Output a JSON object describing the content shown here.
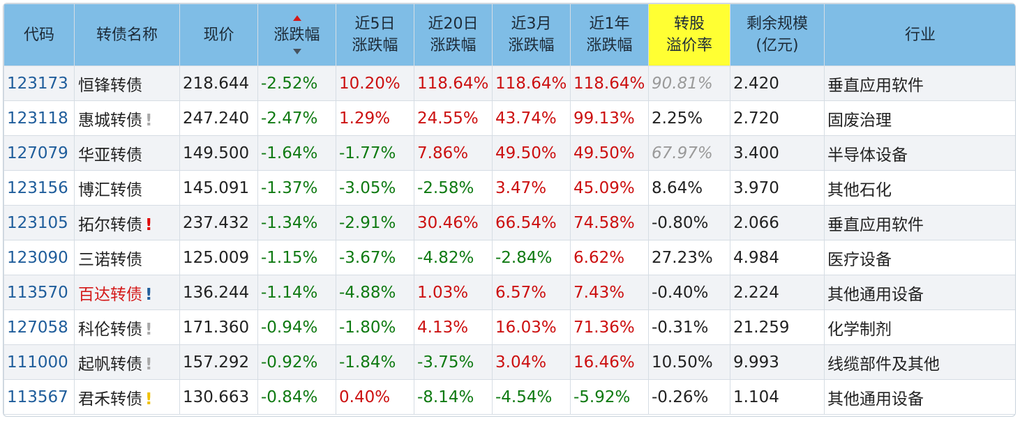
{
  "colors": {
    "header_bg": "#7fbde6",
    "header_highlight": "#ffff33",
    "row_alt_bg": "#f1f3f6",
    "code_color": "#1f5d9b",
    "up_color": "#cc1010",
    "down_color": "#0f7a12",
    "gray_color": "#9a9a9a"
  },
  "headers": {
    "code": "代码",
    "name": "转债名称",
    "price": "现价",
    "change": "涨跌幅",
    "d5_line1": "近5日",
    "d5_line2": "涨跌幅",
    "d20_line1": "近20日",
    "d20_line2": "涨跌幅",
    "m3_line1": "近3月",
    "m3_line2": "涨跌幅",
    "y1_line1": "近1年",
    "y1_line2": "涨跌幅",
    "premium_line1": "转股",
    "premium_line2": "溢价率",
    "scale_line1": "剩余规模",
    "scale_line2": "(亿元)",
    "industry": "行业"
  },
  "sort": {
    "column": "change",
    "icons": [
      "sort-up-icon",
      "sort-down-icon"
    ]
  },
  "rows": [
    {
      "code": "123173",
      "name": "恒锋转债",
      "name_color": "normal",
      "mark": "",
      "mark_color": "none",
      "price": "218.644",
      "change": "-2.52%",
      "d5": "10.20%",
      "d20": "118.64%",
      "m3": "118.64%",
      "y1": "118.64%",
      "premium": "90.81%",
      "premium_style": "gray",
      "scale": "2.420",
      "industry": "垂直应用软件"
    },
    {
      "code": "123118",
      "name": "惠城转债",
      "name_color": "normal",
      "mark": "!",
      "mark_color": "gray",
      "price": "247.240",
      "change": "-2.47%",
      "d5": "1.29%",
      "d20": "24.55%",
      "m3": "43.74%",
      "y1": "99.13%",
      "premium": "2.25%",
      "premium_style": "neutral",
      "scale": "2.720",
      "industry": "固废治理"
    },
    {
      "code": "127079",
      "name": "华亚转债",
      "name_color": "normal",
      "mark": "",
      "mark_color": "none",
      "price": "149.500",
      "change": "-1.64%",
      "d5": "-1.77%",
      "d20": "7.86%",
      "m3": "49.50%",
      "y1": "49.50%",
      "premium": "67.97%",
      "premium_style": "gray",
      "scale": "3.400",
      "industry": "半导体设备"
    },
    {
      "code": "123156",
      "name": "博汇转债",
      "name_color": "normal",
      "mark": "",
      "mark_color": "none",
      "price": "145.091",
      "change": "-1.37%",
      "d5": "-3.05%",
      "d20": "-2.58%",
      "m3": "3.47%",
      "y1": "45.09%",
      "premium": "8.64%",
      "premium_style": "neutral",
      "scale": "3.970",
      "industry": "其他石化"
    },
    {
      "code": "123105",
      "name": "拓尔转债",
      "name_color": "normal",
      "mark": "!",
      "mark_color": "red",
      "price": "237.432",
      "change": "-1.34%",
      "d5": "-2.91%",
      "d20": "30.46%",
      "m3": "66.54%",
      "y1": "74.58%",
      "premium": "-0.80%",
      "premium_style": "neutral",
      "scale": "2.066",
      "industry": "垂直应用软件"
    },
    {
      "code": "123090",
      "name": "三诺转债",
      "name_color": "normal",
      "mark": "",
      "mark_color": "none",
      "price": "125.009",
      "change": "-1.15%",
      "d5": "-3.67%",
      "d20": "-4.82%",
      "m3": "-2.84%",
      "y1": "6.62%",
      "premium": "27.23%",
      "premium_style": "neutral",
      "scale": "4.984",
      "industry": "医疗设备"
    },
    {
      "code": "113570",
      "name": "百达转债",
      "name_color": "red",
      "mark": "!",
      "mark_color": "blue",
      "price": "136.244",
      "change": "-1.14%",
      "d5": "-4.88%",
      "d20": "1.03%",
      "m3": "6.57%",
      "y1": "7.43%",
      "premium": "-0.40%",
      "premium_style": "neutral",
      "scale": "2.224",
      "industry": "其他通用设备"
    },
    {
      "code": "127058",
      "name": "科伦转债",
      "name_color": "normal",
      "mark": "!",
      "mark_color": "gray",
      "price": "171.360",
      "change": "-0.94%",
      "d5": "-1.80%",
      "d20": "4.13%",
      "m3": "16.03%",
      "y1": "71.36%",
      "premium": "-0.31%",
      "premium_style": "neutral",
      "scale": "21.259",
      "industry": "化学制剂"
    },
    {
      "code": "111000",
      "name": "起帆转债",
      "name_color": "normal",
      "mark": "!",
      "mark_color": "gray",
      "price": "157.292",
      "change": "-0.92%",
      "d5": "-1.84%",
      "d20": "-3.75%",
      "m3": "3.04%",
      "y1": "16.46%",
      "premium": "10.50%",
      "premium_style": "neutral",
      "scale": "9.993",
      "industry": "线缆部件及其他"
    },
    {
      "code": "113567",
      "name": "君禾转债",
      "name_color": "normal",
      "mark": "!",
      "mark_color": "yellow",
      "price": "130.663",
      "change": "-0.84%",
      "d5": "0.40%",
      "d20": "-8.14%",
      "m3": "-4.54%",
      "y1": "-5.92%",
      "premium": "-0.26%",
      "premium_style": "neutral",
      "scale": "1.104",
      "industry": "其他通用设备"
    }
  ]
}
